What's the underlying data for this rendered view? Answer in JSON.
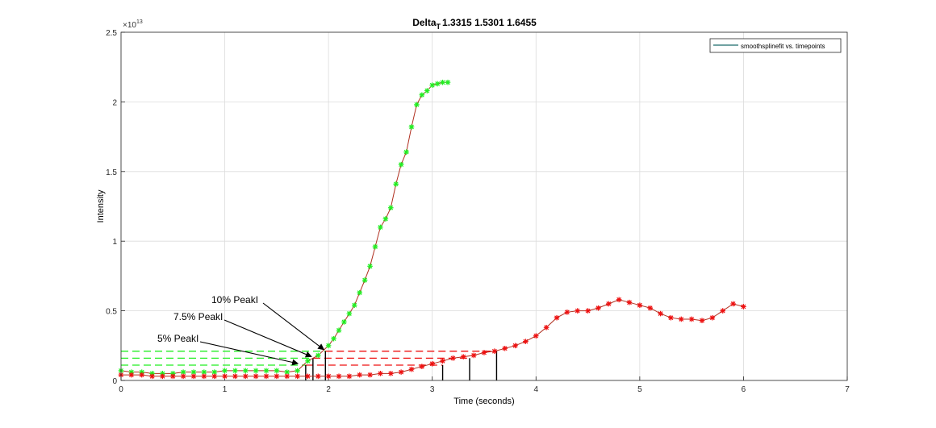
{
  "chart_data": {
    "type": "line",
    "title": "Delta",
    "title_subscript": "T",
    "title_values": "1.3315 1.5301 1.6455",
    "xlabel": "Time (seconds)",
    "ylabel": "Intensity",
    "y_exponent_base": "×10",
    "y_exponent_power": "13",
    "xlim": [
      0,
      7
    ],
    "ylim": [
      0,
      2.5
    ],
    "xticks": [
      "0",
      "1",
      "2",
      "3",
      "4",
      "5",
      "6",
      "7"
    ],
    "yticks": [
      "0",
      "0.5",
      "1",
      "1.5",
      "2",
      "2.5"
    ],
    "grid": true,
    "legend": {
      "location": "top-right",
      "entries": [
        "smoothsplinefit vs. timepoints"
      ]
    },
    "colors": {
      "green_marker": "#22ee22",
      "red_marker": "#ee1111",
      "fit_line": "#b03020",
      "legend_line": "#1a6a6a",
      "annotation": "#000000"
    },
    "series": [
      {
        "marker": "*",
        "color": "#22ee22",
        "x": [
          0.0,
          0.1,
          0.2,
          0.3,
          0.4,
          0.5,
          0.6,
          0.7,
          0.8,
          0.9,
          1.0,
          1.1,
          1.2,
          1.3,
          1.4,
          1.5,
          1.6,
          1.7,
          1.8,
          1.9,
          2.0,
          2.05,
          2.1,
          2.15,
          2.2,
          2.25,
          2.3,
          2.35,
          2.4,
          2.45,
          2.5,
          2.55,
          2.6,
          2.65,
          2.7,
          2.75,
          2.8,
          2.85,
          2.9,
          2.95,
          3.0,
          3.05,
          3.1,
          3.15
        ],
        "y": [
          0.07,
          0.06,
          0.06,
          0.05,
          0.05,
          0.05,
          0.06,
          0.06,
          0.06,
          0.06,
          0.07,
          0.07,
          0.07,
          0.07,
          0.07,
          0.07,
          0.06,
          0.07,
          0.14,
          0.18,
          0.25,
          0.3,
          0.36,
          0.42,
          0.48,
          0.54,
          0.63,
          0.72,
          0.82,
          0.96,
          1.1,
          1.16,
          1.24,
          1.41,
          1.55,
          1.64,
          1.82,
          1.98,
          2.05,
          2.08,
          2.12,
          2.13,
          2.14,
          2.14
        ]
      },
      {
        "marker": "*",
        "color": "#ee1111",
        "x": [
          0.0,
          0.1,
          0.2,
          0.3,
          0.4,
          0.5,
          0.6,
          0.7,
          0.8,
          0.9,
          1.0,
          1.1,
          1.2,
          1.3,
          1.4,
          1.5,
          1.6,
          1.7,
          1.8,
          1.9,
          2.0,
          2.1,
          2.2,
          2.3,
          2.4,
          2.5,
          2.6,
          2.7,
          2.8,
          2.9,
          3.0,
          3.1,
          3.2,
          3.3,
          3.4,
          3.5,
          3.6,
          3.7,
          3.8,
          3.9,
          4.0,
          4.1,
          4.2,
          4.3,
          4.4,
          4.5,
          4.6,
          4.7,
          4.8,
          4.9,
          5.0,
          5.1,
          5.2,
          5.3,
          5.4,
          5.5,
          5.6,
          5.7,
          5.8,
          5.9,
          6.0
        ],
        "y": [
          0.04,
          0.04,
          0.04,
          0.03,
          0.03,
          0.03,
          0.03,
          0.03,
          0.03,
          0.03,
          0.03,
          0.03,
          0.03,
          0.03,
          0.03,
          0.03,
          0.03,
          0.03,
          0.03,
          0.03,
          0.03,
          0.03,
          0.03,
          0.04,
          0.04,
          0.05,
          0.05,
          0.06,
          0.08,
          0.1,
          0.12,
          0.14,
          0.16,
          0.17,
          0.18,
          0.2,
          0.21,
          0.23,
          0.25,
          0.28,
          0.32,
          0.38,
          0.45,
          0.49,
          0.5,
          0.5,
          0.52,
          0.55,
          0.58,
          0.56,
          0.54,
          0.52,
          0.48,
          0.45,
          0.44,
          0.44,
          0.43,
          0.45,
          0.5,
          0.55,
          0.53
        ]
      }
    ],
    "threshold_levels": [
      0.11,
      0.16,
      0.21
    ],
    "green_crossings": [
      1.78,
      1.85,
      1.97
    ],
    "red_crossings": [
      3.1,
      3.36,
      3.62
    ],
    "annotations": [
      {
        "label": "10% PeakI",
        "x": 1.97,
        "y": 0.21
      },
      {
        "label": "7.5% PeakI",
        "x": 1.85,
        "y": 0.16
      },
      {
        "label": "5% PeakI",
        "x": 1.72,
        "y": 0.11
      }
    ]
  }
}
